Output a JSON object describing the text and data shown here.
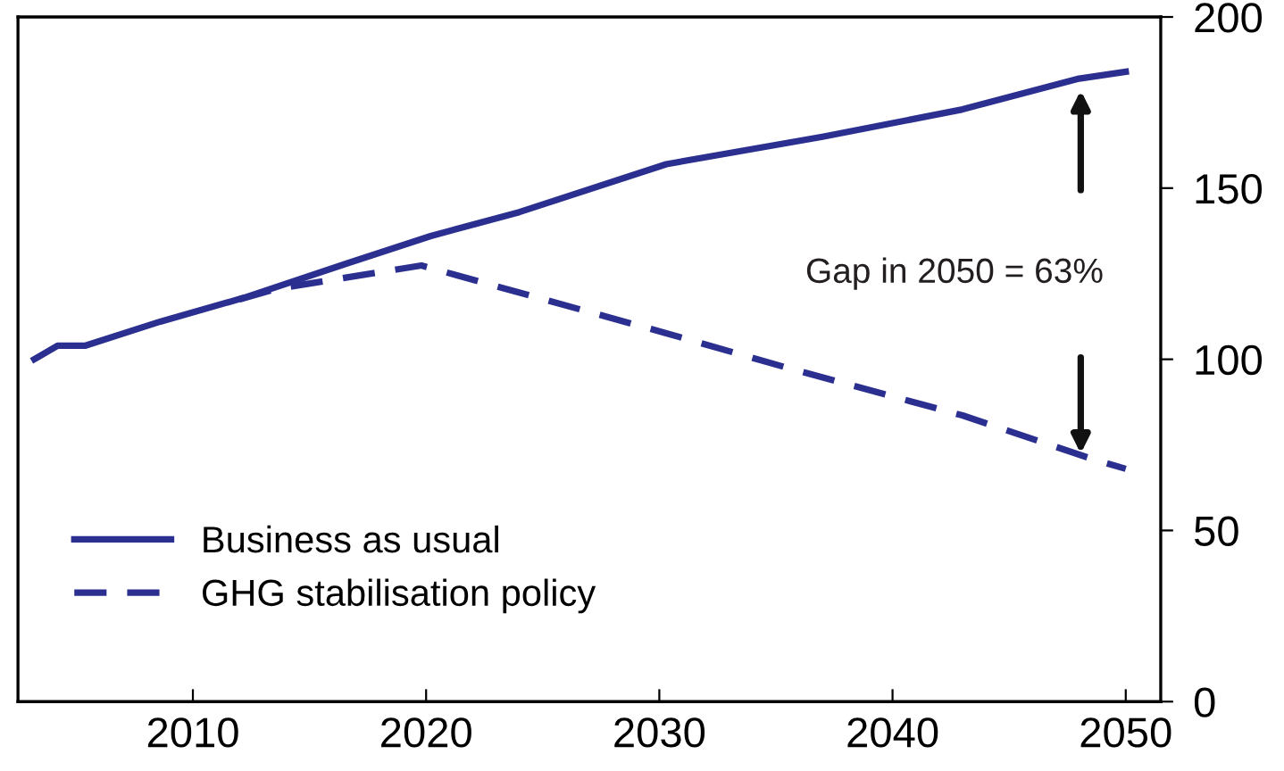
{
  "chart_data": {
    "type": "line",
    "series": [
      {
        "name": "Business as usual",
        "color": "#2b2f8f",
        "line_style": "solid",
        "x": [
          2003.2,
          2004.2,
          2005.4,
          2008.6,
          2012.2,
          2016.6,
          2020.2,
          2024,
          2030.3,
          2037,
          2043,
          2048,
          2050
        ],
        "values": [
          100,
          104,
          104,
          111,
          118,
          128,
          136,
          143,
          157,
          165,
          173,
          182,
          184
        ]
      },
      {
        "name": "GHG stabilisation policy",
        "color": "#2b2f8f",
        "line_style": "dashed",
        "x": [
          2012,
          2013.6,
          2019.8,
          2030.3,
          2035.7,
          2043,
          2048.5,
          2050
        ],
        "values": [
          117.5,
          120.6,
          127.4,
          107.6,
          97.1,
          83.6,
          71,
          68
        ]
      }
    ],
    "xlim": [
      2002.5,
      2051.5
    ],
    "xticks": [
      2010,
      2020,
      2030,
      2040,
      2050
    ],
    "ylim": [
      0,
      200
    ],
    "yticks": [
      0,
      50,
      100,
      150,
      200
    ],
    "annotations": [
      "Gap in 2050 = 63%"
    ],
    "legend": "bottom left",
    "grid": false,
    "marker": "none"
  }
}
